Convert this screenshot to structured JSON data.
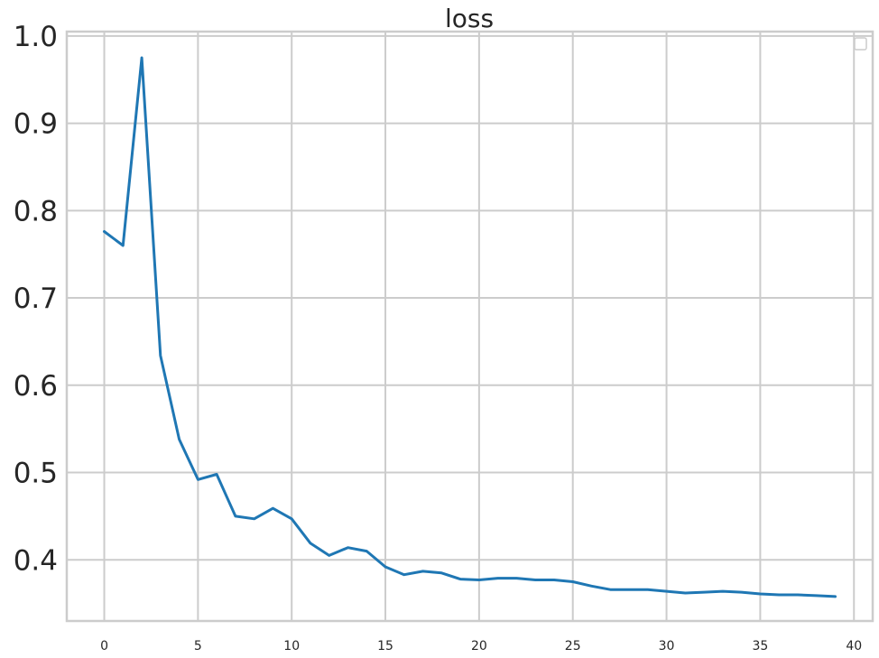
{
  "chart_data": {
    "type": "line",
    "title": "loss",
    "xlabel": "",
    "ylabel": "",
    "xlim": [
      -2,
      41
    ],
    "ylim": [
      0.33,
      1.005
    ],
    "grid": true,
    "legend": "top-right",
    "x_ticks": [
      "0",
      "5",
      "10",
      "15",
      "20",
      "25",
      "30",
      "35",
      "40"
    ],
    "y_ticks": [
      "0.4",
      "0.5",
      "0.6",
      "0.7",
      "0.8",
      "0.9",
      "1.0"
    ],
    "colors": {
      "line": "#1f77b4",
      "grid": "#cccccc",
      "axes": "#cccccc",
      "text": "#262626"
    },
    "series": [
      {
        "x": [
          0,
          1,
          2,
          3,
          4,
          5,
          6,
          7,
          8,
          9,
          10,
          11,
          12,
          13,
          14,
          15,
          16,
          17,
          18,
          19,
          20,
          21,
          22,
          23,
          24,
          25,
          26,
          27,
          28,
          29,
          30,
          31,
          32,
          33,
          34,
          35,
          36,
          37,
          38,
          39
        ],
        "values": [
          0.776,
          0.76,
          0.975,
          0.634,
          0.538,
          0.492,
          0.498,
          0.45,
          0.447,
          0.459,
          0.447,
          0.419,
          0.405,
          0.414,
          0.41,
          0.392,
          0.383,
          0.387,
          0.385,
          0.378,
          0.377,
          0.379,
          0.379,
          0.377,
          0.377,
          0.375,
          0.37,
          0.366,
          0.366,
          0.366,
          0.364,
          0.362,
          0.363,
          0.364,
          0.363,
          0.361,
          0.36,
          0.36,
          0.359,
          0.358
        ]
      }
    ]
  }
}
